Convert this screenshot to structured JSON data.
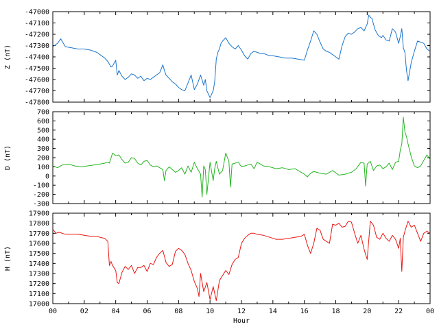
{
  "chart_data": [
    {
      "type": "line",
      "ylabel": "Z (nT)",
      "color": "#1874cd",
      "ylim": [
        -47800,
        -47000
      ],
      "yticks": [
        -47000,
        -47100,
        -47200,
        -47300,
        -47400,
        -47500,
        -47600,
        -47700,
        -47800
      ],
      "series": [
        {
          "x": [
            0,
            0.3,
            0.5,
            0.8,
            1.2,
            1.6,
            2.0,
            2.4,
            2.8,
            3.0,
            3.3,
            3.5,
            3.7,
            3.8,
            4.0,
            4.1,
            4.2,
            4.4,
            4.6,
            4.8,
            5.0,
            5.2,
            5.4,
            5.6,
            5.8,
            6.0,
            6.2,
            6.4,
            6.6,
            6.8,
            7.0,
            7.1,
            7.2,
            7.4,
            7.6,
            7.8,
            8.0,
            8.2,
            8.4,
            8.6,
            8.8,
            9.0,
            9.2,
            9.4,
            9.6,
            9.7,
            9.8,
            9.9,
            10.0,
            10.2,
            10.3,
            10.4,
            10.5,
            10.6,
            10.7,
            10.8,
            11.0,
            11.2,
            11.4,
            11.6,
            11.8,
            12.0,
            12.2,
            12.4,
            12.6,
            12.8,
            13.0,
            13.2,
            13.4,
            13.6,
            13.8,
            14.0,
            14.4,
            14.8,
            15.2,
            15.6,
            16.0,
            16.2,
            16.4,
            16.6,
            16.8,
            17.0,
            17.2,
            17.4,
            17.6,
            17.8,
            18.0,
            18.2,
            18.4,
            18.6,
            18.8,
            19.0,
            19.2,
            19.4,
            19.6,
            19.8,
            20.0,
            20.1,
            20.2,
            20.3,
            20.5,
            20.7,
            20.9,
            21.0,
            21.2,
            21.4,
            21.6,
            21.8,
            22.0,
            22.1,
            22.2,
            22.3,
            22.4,
            22.5,
            22.6,
            22.8,
            23.0,
            23.2,
            23.4,
            23.6,
            23.8,
            24.0
          ],
          "y": [
            -47310,
            -47280,
            -47240,
            -47310,
            -47320,
            -47330,
            -47330,
            -47340,
            -47360,
            -47380,
            -47410,
            -47440,
            -47490,
            -47480,
            -47430,
            -47560,
            -47520,
            -47570,
            -47600,
            -47580,
            -47550,
            -47560,
            -47590,
            -47570,
            -47610,
            -47590,
            -47600,
            -47580,
            -47560,
            -47540,
            -47470,
            -47520,
            -47560,
            -47590,
            -47620,
            -47640,
            -47670,
            -47690,
            -47700,
            -47630,
            -47560,
            -47690,
            -47640,
            -47560,
            -47650,
            -47600,
            -47700,
            -47730,
            -47760,
            -47700,
            -47620,
            -47420,
            -47360,
            -47330,
            -47280,
            -47260,
            -47230,
            -47280,
            -47310,
            -47330,
            -47300,
            -47340,
            -47390,
            -47420,
            -47370,
            -47350,
            -47360,
            -47370,
            -47370,
            -47380,
            -47390,
            -47390,
            -47400,
            -47410,
            -47410,
            -47420,
            -47430,
            -47340,
            -47260,
            -47170,
            -47200,
            -47270,
            -47330,
            -47350,
            -47360,
            -47380,
            -47400,
            -47420,
            -47300,
            -47220,
            -47190,
            -47200,
            -47180,
            -47150,
            -47140,
            -47170,
            -47110,
            -47030,
            -47050,
            -47060,
            -47160,
            -47210,
            -47230,
            -47210,
            -47250,
            -47260,
            -47150,
            -47180,
            -47280,
            -47220,
            -47150,
            -47320,
            -47360,
            -47520,
            -47610,
            -47450,
            -47350,
            -47260,
            -47270,
            -47280,
            -47330,
            -47350
          ]
        }
      ]
    },
    {
      "type": "line",
      "ylabel": "D (nT)",
      "color": "#22b51f",
      "ylim": [
        -300,
        700
      ],
      "yticks": [
        700,
        600,
        500,
        400,
        300,
        200,
        100,
        0,
        -100,
        -200,
        -300
      ],
      "series": [
        {
          "x": [
            0,
            0.3,
            0.6,
            1.0,
            1.4,
            1.8,
            2.2,
            2.6,
            3.0,
            3.3,
            3.5,
            3.6,
            3.8,
            4.0,
            4.2,
            4.4,
            4.6,
            4.8,
            5.0,
            5.2,
            5.4,
            5.6,
            5.8,
            6.0,
            6.2,
            6.4,
            6.6,
            6.8,
            7.0,
            7.1,
            7.2,
            7.4,
            7.6,
            7.8,
            8.0,
            8.2,
            8.4,
            8.6,
            8.8,
            9.0,
            9.2,
            9.4,
            9.5,
            9.6,
            9.7,
            9.8,
            10.0,
            10.2,
            10.3,
            10.4,
            10.6,
            10.8,
            11.0,
            11.2,
            11.3,
            11.4,
            11.6,
            11.8,
            12.0,
            12.2,
            12.4,
            12.6,
            12.8,
            13.0,
            13.4,
            13.8,
            14.2,
            14.6,
            15.0,
            15.4,
            15.8,
            16.0,
            16.2,
            16.4,
            16.6,
            16.8,
            17.0,
            17.4,
            17.8,
            18.2,
            18.6,
            19.0,
            19.3,
            19.6,
            19.8,
            19.9,
            20.0,
            20.2,
            20.4,
            20.6,
            20.8,
            21.0,
            21.2,
            21.4,
            21.6,
            21.8,
            22.0,
            22.1,
            22.2,
            22.3,
            22.4,
            22.5,
            22.6,
            22.8,
            23.0,
            23.2,
            23.4,
            23.6,
            23.8,
            24.0
          ],
          "y": [
            110,
            90,
            120,
            130,
            110,
            100,
            110,
            120,
            130,
            140,
            150,
            140,
            250,
            220,
            230,
            180,
            140,
            150,
            200,
            190,
            140,
            120,
            160,
            170,
            120,
            100,
            110,
            90,
            70,
            -50,
            60,
            100,
            70,
            40,
            60,
            90,
            20,
            110,
            40,
            150,
            80,
            20,
            -230,
            110,
            70,
            -200,
            150,
            -50,
            80,
            160,
            20,
            60,
            250,
            160,
            -120,
            130,
            140,
            150,
            100,
            110,
            120,
            130,
            80,
            150,
            110,
            100,
            80,
            90,
            70,
            80,
            40,
            20,
            -10,
            30,
            50,
            40,
            30,
            20,
            60,
            10,
            20,
            40,
            80,
            150,
            140,
            -110,
            130,
            160,
            60,
            110,
            120,
            80,
            100,
            140,
            70,
            150,
            160,
            280,
            350,
            640,
            480,
            430,
            350,
            210,
            110,
            90,
            110,
            170,
            230,
            180
          ]
        }
      ]
    },
    {
      "type": "line",
      "ylabel": "H (nT)",
      "xlabel": "Hour",
      "color": "#e8140f",
      "ylim": [
        17000,
        17900
      ],
      "yticks": [
        17900,
        17800,
        17700,
        17600,
        17500,
        17400,
        17300,
        17200,
        17100,
        17000
      ],
      "xlim": [
        0,
        24
      ],
      "xticks": [
        "00",
        "02",
        "04",
        "06",
        "08",
        "10",
        "12",
        "14",
        "16",
        "18",
        "20",
        "22",
        "00"
      ],
      "series": [
        {
          "x": [
            0,
            0.2,
            0.4,
            0.8,
            1.2,
            1.6,
            2.0,
            2.4,
            2.8,
            3.0,
            3.3,
            3.5,
            3.6,
            3.7,
            3.8,
            4.0,
            4.1,
            4.2,
            4.4,
            4.6,
            4.8,
            5.0,
            5.2,
            5.4,
            5.6,
            5.8,
            6.0,
            6.2,
            6.4,
            6.6,
            6.8,
            7.0,
            7.2,
            7.4,
            7.6,
            7.8,
            8.0,
            8.2,
            8.4,
            8.6,
            8.8,
            9.0,
            9.2,
            9.3,
            9.4,
            9.6,
            9.8,
            10.0,
            10.2,
            10.4,
            10.6,
            10.8,
            11.0,
            11.2,
            11.4,
            11.6,
            11.8,
            12.0,
            12.2,
            12.4,
            12.6,
            12.8,
            13.0,
            13.4,
            13.8,
            14.2,
            14.6,
            15.0,
            15.4,
            15.8,
            16.0,
            16.2,
            16.4,
            16.6,
            16.8,
            17.0,
            17.2,
            17.4,
            17.6,
            17.8,
            18.0,
            18.2,
            18.4,
            18.6,
            18.8,
            19.0,
            19.2,
            19.4,
            19.6,
            19.8,
            20.0,
            20.2,
            20.4,
            20.6,
            20.8,
            21.0,
            21.2,
            21.4,
            21.6,
            21.8,
            22.0,
            22.1,
            22.2,
            22.3,
            22.4,
            22.6,
            22.8,
            23.0,
            23.2,
            23.4,
            23.6,
            23.8,
            24.0
          ],
          "y": [
            17740,
            17700,
            17710,
            17690,
            17690,
            17690,
            17680,
            17670,
            17670,
            17660,
            17650,
            17620,
            17380,
            17420,
            17380,
            17330,
            17210,
            17200,
            17310,
            17370,
            17340,
            17380,
            17300,
            17360,
            17360,
            17380,
            17320,
            17400,
            17390,
            17460,
            17500,
            17530,
            17410,
            17370,
            17390,
            17520,
            17550,
            17530,
            17490,
            17400,
            17330,
            17220,
            17150,
            17070,
            17300,
            17120,
            17210,
            17040,
            17170,
            17030,
            17230,
            17280,
            17330,
            17290,
            17390,
            17440,
            17460,
            17600,
            17650,
            17680,
            17700,
            17700,
            17690,
            17680,
            17660,
            17640,
            17640,
            17650,
            17660,
            17670,
            17690,
            17580,
            17500,
            17600,
            17750,
            17730,
            17640,
            17620,
            17600,
            17790,
            17780,
            17800,
            17760,
            17770,
            17820,
            17810,
            17700,
            17600,
            17680,
            17540,
            17440,
            17820,
            17780,
            17660,
            17640,
            17700,
            17650,
            17620,
            17680,
            17640,
            17550,
            17650,
            17320,
            17660,
            17720,
            17820,
            17760,
            17780,
            17700,
            17620,
            17700,
            17720,
            17700
          ]
        }
      ]
    }
  ]
}
